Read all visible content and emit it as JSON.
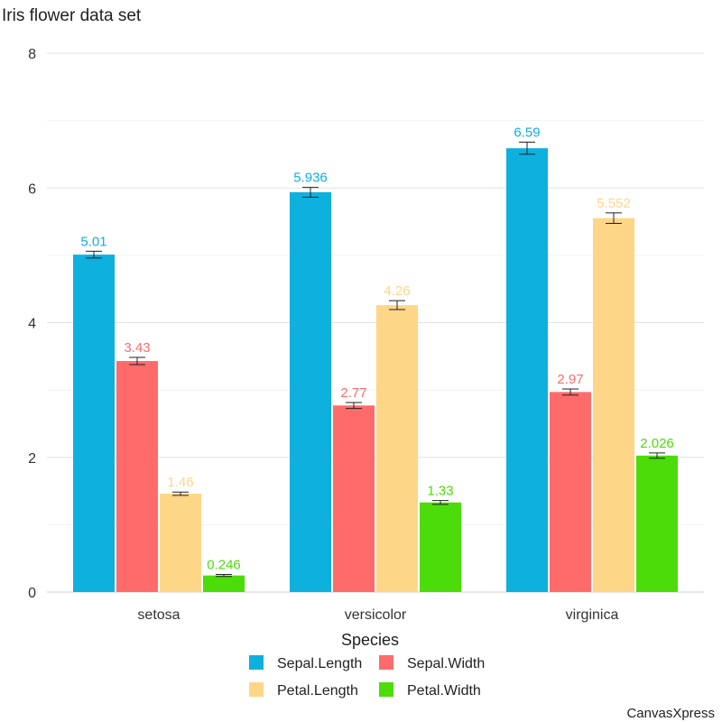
{
  "chart_data": {
    "type": "bar",
    "title": "Iris flower data set",
    "xlabel": "Species",
    "ylabel": "",
    "ylim": [
      0,
      8
    ],
    "yticks": [
      0,
      2,
      4,
      6,
      8
    ],
    "minor_grid": [
      1,
      3,
      5,
      7
    ],
    "grid": true,
    "legend_position": "bottom",
    "categories": [
      "setosa",
      "versicolor",
      "virginica"
    ],
    "series": [
      {
        "name": "Sepal.Length",
        "color": "#0eb0dd",
        "values": [
          5.01,
          5.936,
          6.59
        ],
        "labels": [
          "5.01",
          "5.936",
          "6.59"
        ],
        "errors": [
          0.0498,
          0.073,
          0.0899
        ]
      },
      {
        "name": "Sepal.Width",
        "color": "#ff6b6b",
        "values": [
          3.43,
          2.77,
          2.97
        ],
        "labels": [
          "3.43",
          "2.77",
          "2.97"
        ],
        "errors": [
          0.0536,
          0.0444,
          0.0456
        ]
      },
      {
        "name": "Petal.Length",
        "color": "#fed688",
        "values": [
          1.46,
          4.26,
          5.552
        ],
        "labels": [
          "1.46",
          "4.26",
          "5.552"
        ],
        "errors": [
          0.0246,
          0.0665,
          0.078
        ]
      },
      {
        "name": "Petal.Width",
        "color": "#4cdc0a",
        "values": [
          0.246,
          1.33,
          2.026
        ],
        "labels": [
          "0.246",
          "1.33",
          "2.026"
        ],
        "errors": [
          0.0149,
          0.028,
          0.0388
        ]
      }
    ],
    "watermark": "CanvasXpress"
  }
}
